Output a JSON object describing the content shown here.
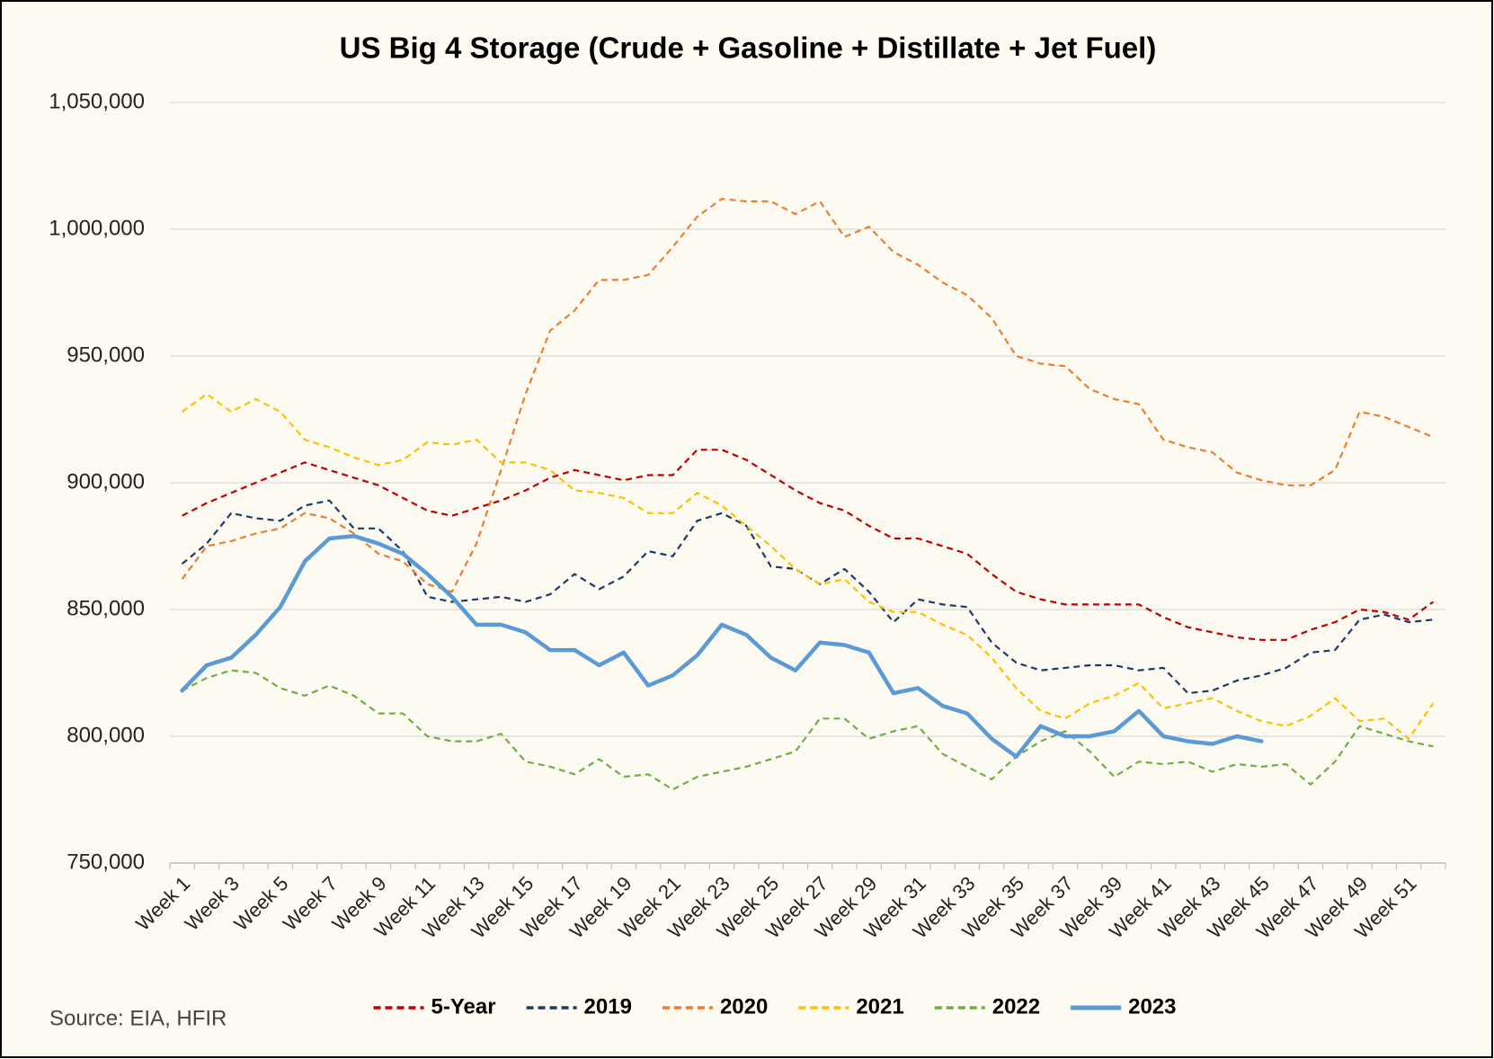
{
  "chart_data": {
    "type": "line",
    "title": "US Big 4 Storage (Crude + Gasoline + Distillate + Jet Fuel)",
    "source": "Source: EIA, HFIR",
    "categories": [
      "Week 1",
      null,
      "Week 3",
      null,
      "Week 5",
      null,
      "Week 7",
      null,
      "Week 9",
      null,
      "Week 11",
      null,
      "Week 13",
      null,
      "Week 15",
      null,
      "Week 17",
      null,
      "Week 19",
      null,
      "Week 21",
      null,
      "Week 23",
      null,
      "Week 25",
      null,
      "Week 27",
      null,
      "Week 29",
      null,
      "Week 31",
      null,
      "Week 33",
      null,
      "Week 35",
      null,
      "Week 37",
      null,
      "Week 39",
      null,
      "Week 41",
      null,
      "Week 43",
      null,
      "Week 45",
      null,
      "Week 47",
      null,
      "Week 49",
      null,
      "Week 51",
      null
    ],
    "ylim": [
      750000,
      1050000
    ],
    "yticks": [
      {
        "value": 750000,
        "label": "750,000"
      },
      {
        "value": 800000,
        "label": "800,000"
      },
      {
        "value": 850000,
        "label": "850,000"
      },
      {
        "value": 900000,
        "label": "900,000"
      },
      {
        "value": 950000,
        "label": "950,000"
      },
      {
        "value": 1000000,
        "label": "1,000,000"
      },
      {
        "value": 1050000,
        "label": "1,050,000"
      }
    ],
    "grid": true,
    "legend": "bottom",
    "series": [
      {
        "name": "5-Year",
        "color": "#c00000",
        "dashed": true,
        "values": [
          887000,
          892000,
          896000,
          900000,
          904000,
          908000,
          905000,
          902000,
          899000,
          894000,
          889000,
          887000,
          890000,
          893000,
          897000,
          902000,
          905000,
          903000,
          901000,
          903000,
          903000,
          913000,
          913000,
          909000,
          903000,
          897000,
          892000,
          889000,
          883000,
          878000,
          878000,
          875000,
          872000,
          864000,
          857000,
          854000,
          852000,
          852000,
          852000,
          852000,
          847000,
          843000,
          841000,
          839000,
          838000,
          838000,
          842000,
          845000,
          850000,
          849000,
          846000,
          853000
        ]
      },
      {
        "name": "2019",
        "color": "#1f3864",
        "dashed": true,
        "values": [
          868000,
          876000,
          888000,
          886000,
          885000,
          891000,
          893000,
          882000,
          882000,
          873000,
          855000,
          853000,
          854000,
          855000,
          853000,
          856000,
          864000,
          858000,
          863000,
          873000,
          871000,
          885000,
          888000,
          883000,
          867000,
          866000,
          860000,
          866000,
          857000,
          845000,
          854000,
          852000,
          851000,
          837000,
          829000,
          826000,
          827000,
          828000,
          828000,
          826000,
          827000,
          817000,
          818000,
          822000,
          824000,
          827000,
          833000,
          834000,
          846000,
          848000,
          845000,
          846000
        ]
      },
      {
        "name": "2020",
        "color": "#ed7d31",
        "dashed": true,
        "values": [
          862000,
          875000,
          877000,
          880000,
          882000,
          888000,
          886000,
          880000,
          872000,
          869000,
          860000,
          857000,
          876000,
          905000,
          935000,
          960000,
          968000,
          980000,
          980000,
          982000,
          993000,
          1005000,
          1012000,
          1011000,
          1011000,
          1006000,
          1011000,
          997000,
          1001000,
          991000,
          986000,
          979000,
          974000,
          965000,
          950000,
          947000,
          946000,
          937000,
          933000,
          931000,
          917000,
          914000,
          912000,
          904000,
          901000,
          899000,
          899000,
          905000,
          928000,
          926000,
          922000,
          918000
        ]
      },
      {
        "name": "2021",
        "color": "#ffc000",
        "dashed": true,
        "values": [
          928000,
          935000,
          928000,
          933000,
          928000,
          917000,
          914000,
          910000,
          907000,
          909000,
          916000,
          915000,
          917000,
          908000,
          908000,
          905000,
          897000,
          896000,
          894000,
          888000,
          888000,
          896000,
          891000,
          883000,
          875000,
          866000,
          860000,
          862000,
          853000,
          849000,
          849000,
          844000,
          840000,
          831000,
          819000,
          810000,
          807000,
          813000,
          816000,
          821000,
          811000,
          813000,
          815000,
          810000,
          806000,
          804000,
          808000,
          815000,
          806000,
          807000,
          799000,
          813000
        ]
      },
      {
        "name": "2022",
        "color": "#70ad47",
        "dashed": true,
        "values": [
          818000,
          823000,
          826000,
          825000,
          819000,
          816000,
          820000,
          816000,
          809000,
          809000,
          800000,
          798000,
          798000,
          801000,
          790000,
          788000,
          785000,
          791000,
          784000,
          785000,
          779000,
          784000,
          786000,
          788000,
          791000,
          794000,
          807000,
          807000,
          799000,
          802000,
          804000,
          793000,
          788000,
          783000,
          792000,
          798000,
          802000,
          794000,
          784000,
          790000,
          789000,
          790000,
          786000,
          789000,
          788000,
          789000,
          781000,
          790000,
          804000,
          801000,
          798000,
          796000
        ]
      },
      {
        "name": "2023",
        "color": "#5b9bd5",
        "dashed": false,
        "values": [
          818000,
          828000,
          831000,
          840000,
          851000,
          869000,
          878000,
          879000,
          876000,
          872000,
          864000,
          855000,
          844000,
          844000,
          841000,
          834000,
          834000,
          828000,
          833000,
          820000,
          824000,
          832000,
          844000,
          840000,
          831000,
          826000,
          837000,
          836000,
          833000,
          817000,
          819000,
          812000,
          809000,
          799000,
          792000,
          804000,
          800000,
          800000,
          802000,
          810000,
          800000,
          798000,
          797000,
          800000,
          798000,
          null,
          null,
          null,
          null,
          null,
          null,
          null
        ]
      }
    ]
  }
}
